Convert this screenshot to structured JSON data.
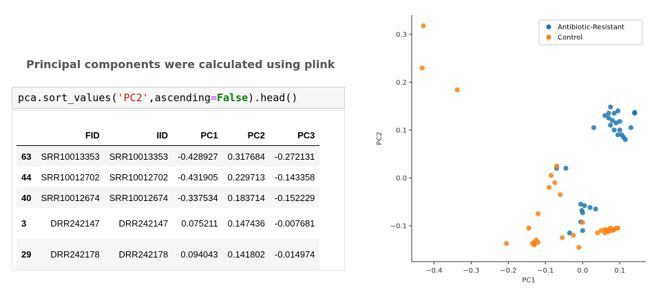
{
  "caption": "Principal components were calculated using plink",
  "code": {
    "prefix": "pca.sort_values(",
    "string_arg": "'PC2'",
    "middle": ",ascending",
    "equals": "=",
    "keyword": "False",
    "suffix": ").head()"
  },
  "table": {
    "columns": [
      "FID",
      "IID",
      "PC1",
      "PC2",
      "PC3"
    ],
    "rows": [
      {
        "index": "63",
        "cells": [
          "SRR10013353",
          "SRR10013353",
          "-0.428927",
          "0.317684",
          "-0.272131"
        ]
      },
      {
        "index": "44",
        "cells": [
          "SRR10012702",
          "SRR10012702",
          "-0.431905",
          "0.229713",
          "-0.143358"
        ]
      },
      {
        "index": "40",
        "cells": [
          "SRR10012674",
          "SRR10012674",
          "-0.337534",
          "0.183714",
          "-0.152229"
        ]
      },
      {
        "index": "3",
        "cells": [
          "DRR242147",
          "DRR242147",
          "0.075211",
          "0.147436",
          "-0.007681"
        ]
      },
      {
        "index": "29",
        "cells": [
          "DRR242178",
          "DRR242178",
          "0.094043",
          "0.141802",
          "-0.014974"
        ]
      }
    ]
  },
  "chart_data": {
    "type": "scatter",
    "title": "",
    "xlabel": "PC1",
    "ylabel": "PC2",
    "xlim": [
      -0.46,
      0.17
    ],
    "ylim": [
      -0.175,
      0.34
    ],
    "xticks": [
      -0.4,
      -0.3,
      -0.2,
      -0.1,
      0.0,
      0.1
    ],
    "xtick_labels": [
      "−0.4",
      "−0.3",
      "−0.2",
      "−0.1",
      "0.0",
      "0.1"
    ],
    "yticks": [
      -0.1,
      0.0,
      0.1,
      0.2,
      0.3
    ],
    "ytick_labels": [
      "−0.1",
      "0.0",
      "0.1",
      "0.2",
      "0.3"
    ],
    "grid": false,
    "legend_position": "top-right",
    "series": [
      {
        "name": "Antibiotic-Resistant",
        "color": "#1f77b4",
        "points": [
          [
            0.075,
            0.148
          ],
          [
            0.095,
            0.14
          ],
          [
            0.06,
            0.13
          ],
          [
            0.085,
            0.135
          ],
          [
            0.14,
            0.137
          ],
          [
            0.07,
            0.125
          ],
          [
            0.08,
            0.12
          ],
          [
            0.09,
            0.115
          ],
          [
            0.1,
            0.118
          ],
          [
            0.075,
            0.11
          ],
          [
            0.085,
            0.1
          ],
          [
            0.1,
            0.1
          ],
          [
            0.13,
            0.105
          ],
          [
            0.095,
            0.09
          ],
          [
            0.11,
            0.085
          ],
          [
            0.105,
            0.09
          ],
          [
            0.115,
            0.08
          ],
          [
            0.03,
            0.105
          ],
          [
            0.14,
            0.135
          ],
          [
            0.07,
            0.135
          ],
          [
            -0.07,
            0.02
          ],
          [
            -0.045,
            0.02
          ],
          [
            -0.005,
            -0.055
          ],
          [
            0.005,
            -0.058
          ],
          [
            0.02,
            -0.062
          ],
          [
            0.035,
            -0.065
          ],
          [
            -0.002,
            -0.068
          ],
          [
            0.0,
            -0.073
          ],
          [
            -0.005,
            -0.092
          ],
          [
            0.0,
            -0.11
          ],
          [
            -0.035,
            -0.115
          ]
        ]
      },
      {
        "name": "Control",
        "color": "#ff7f0e",
        "points": [
          [
            -0.428927,
            0.317684
          ],
          [
            -0.431905,
            0.229713
          ],
          [
            -0.337534,
            0.183714
          ],
          [
            -0.07,
            0.025
          ],
          [
            -0.085,
            0.005
          ],
          [
            -0.075,
            -0.01
          ],
          [
            -0.09,
            -0.02
          ],
          [
            -0.06,
            -0.035
          ],
          [
            -0.12,
            -0.075
          ],
          [
            -0.145,
            -0.105
          ],
          [
            -0.205,
            -0.137
          ],
          [
            -0.13,
            -0.135
          ],
          [
            -0.125,
            -0.13
          ],
          [
            -0.13,
            -0.14
          ],
          [
            -0.135,
            -0.137
          ],
          [
            -0.12,
            -0.135
          ],
          [
            -0.055,
            -0.125
          ],
          [
            -0.025,
            -0.12
          ],
          [
            -0.01,
            -0.145
          ],
          [
            0.0,
            -0.093
          ],
          [
            0.04,
            -0.115
          ],
          [
            0.05,
            -0.11
          ],
          [
            0.06,
            -0.115
          ],
          [
            0.065,
            -0.11
          ],
          [
            0.07,
            -0.108
          ],
          [
            0.075,
            -0.105
          ],
          [
            0.08,
            -0.11
          ],
          [
            0.085,
            -0.108
          ],
          [
            0.09,
            -0.105
          ],
          [
            0.095,
            -0.105
          ],
          [
            0.07,
            -0.112
          ],
          [
            0.06,
            -0.108
          ]
        ]
      }
    ]
  }
}
